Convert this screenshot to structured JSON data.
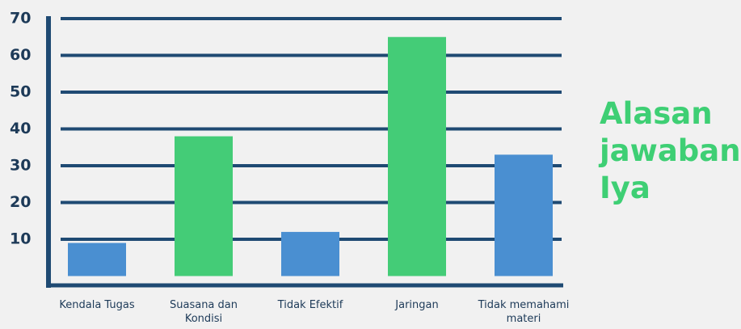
{
  "chart_data": {
    "type": "bar",
    "title": "Alasan jawaban Iya",
    "categories": [
      "Kendala Tugas",
      "Suasana dan Kondisi",
      "Tidak Efektif",
      "Jaringan",
      "Tidak memahami materi"
    ],
    "values": [
      9,
      38,
      12,
      65,
      33
    ],
    "colors": [
      "#4a8fd1",
      "#44cc77",
      "#4a8fd1",
      "#44cc77",
      "#4a8fd1"
    ],
    "ylim": [
      0,
      70
    ],
    "yticks": [
      10,
      20,
      30,
      40,
      50,
      60,
      70
    ],
    "grid": true
  }
}
